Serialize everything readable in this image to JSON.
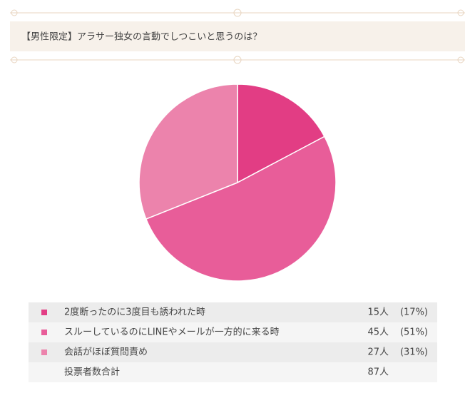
{
  "chart_data": {
    "type": "pie",
    "title": "【男性限定】アラサー独女の言動でしつこいと思うのは？",
    "categories": [
      "2度断ったのに3度目も誘われた時",
      "スルーしているのにLINEやメールが一方的に来る時",
      "会話がほぼ質問責め"
    ],
    "values": [
      15,
      45,
      27
    ],
    "value_labels": [
      "15人",
      "45人",
      "27人"
    ],
    "share_labels": [
      "(17%)",
      "(51%)",
      "(31%)"
    ],
    "colors": [
      "#e23d84",
      "#e85d99",
      "#ec83ac"
    ],
    "total_label": "投票者数合計",
    "total_value_label": "87人"
  }
}
